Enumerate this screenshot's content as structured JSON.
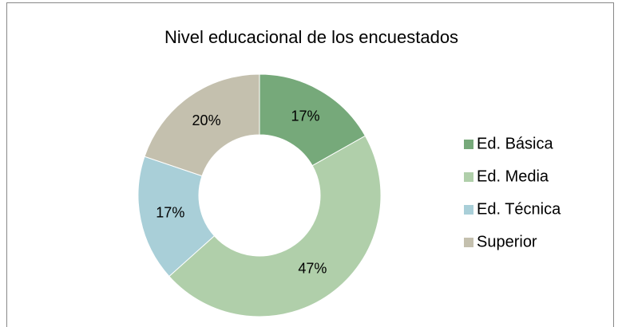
{
  "chart_data": {
    "type": "donut",
    "title": "Nivel educacional de los encuestados",
    "categories": [
      "Ed. Básica",
      "Ed. Media",
      "Ed. Técnica",
      "Superior"
    ],
    "values": [
      17,
      47,
      17,
      20
    ],
    "value_labels": [
      "17%",
      "47%",
      "17%",
      "20%"
    ],
    "colors": [
      "#76a97a",
      "#b0cfaa",
      "#a9cfd8",
      "#c4c0ae"
    ],
    "legend": "right"
  }
}
